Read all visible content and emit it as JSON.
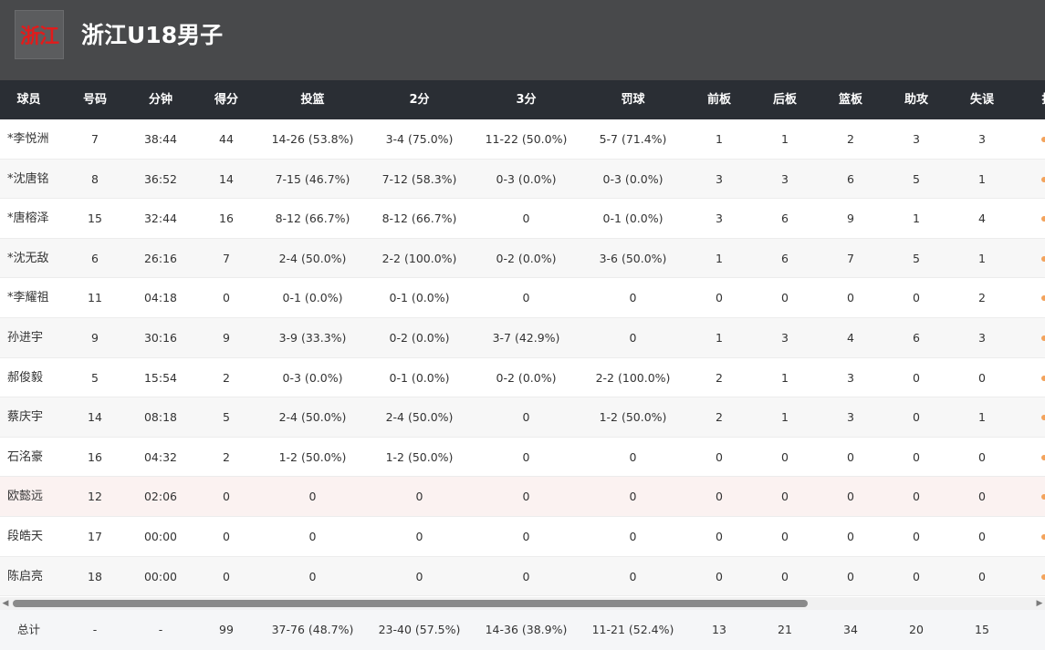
{
  "team": {
    "logo_text": "浙江",
    "name": "浙江U18男子"
  },
  "columns": [
    "球员",
    "号码",
    "分钟",
    "得分",
    "投篮",
    "2分",
    "3分",
    "罚球",
    "前板",
    "后板",
    "篮板",
    "助攻",
    "失误",
    "抢"
  ],
  "players": [
    {
      "name": "*李悦洲",
      "no": "7",
      "min": "38:44",
      "pts": "44",
      "fg": "14-26 (53.8%)",
      "two": "3-4 (75.0%)",
      "three": "11-22 (50.0%)",
      "ft": "5-7 (71.4%)",
      "oreb": "1",
      "dreb": "1",
      "reb": "2",
      "ast": "3",
      "tov": "3"
    },
    {
      "name": "*沈唐铭",
      "no": "8",
      "min": "36:52",
      "pts": "14",
      "fg": "7-15 (46.7%)",
      "two": "7-12 (58.3%)",
      "three": "0-3 (0.0%)",
      "ft": "0-3 (0.0%)",
      "oreb": "3",
      "dreb": "3",
      "reb": "6",
      "ast": "5",
      "tov": "1"
    },
    {
      "name": "*唐榕泽",
      "no": "15",
      "min": "32:44",
      "pts": "16",
      "fg": "8-12 (66.7%)",
      "two": "8-12 (66.7%)",
      "three": "0",
      "ft": "0-1 (0.0%)",
      "oreb": "3",
      "dreb": "6",
      "reb": "9",
      "ast": "1",
      "tov": "4"
    },
    {
      "name": "*沈无敌",
      "no": "6",
      "min": "26:16",
      "pts": "7",
      "fg": "2-4 (50.0%)",
      "two": "2-2 (100.0%)",
      "three": "0-2 (0.0%)",
      "ft": "3-6 (50.0%)",
      "oreb": "1",
      "dreb": "6",
      "reb": "7",
      "ast": "5",
      "tov": "1"
    },
    {
      "name": "*李耀祖",
      "no": "11",
      "min": "04:18",
      "pts": "0",
      "fg": "0-1 (0.0%)",
      "two": "0-1 (0.0%)",
      "three": "0",
      "ft": "0",
      "oreb": "0",
      "dreb": "0",
      "reb": "0",
      "ast": "0",
      "tov": "2"
    },
    {
      "name": "孙进宇",
      "no": "9",
      "min": "30:16",
      "pts": "9",
      "fg": "3-9 (33.3%)",
      "two": "0-2 (0.0%)",
      "three": "3-7 (42.9%)",
      "ft": "0",
      "oreb": "1",
      "dreb": "3",
      "reb": "4",
      "ast": "6",
      "tov": "3"
    },
    {
      "name": "郝俊毅",
      "no": "5",
      "min": "15:54",
      "pts": "2",
      "fg": "0-3 (0.0%)",
      "two": "0-1 (0.0%)",
      "three": "0-2 (0.0%)",
      "ft": "2-2 (100.0%)",
      "oreb": "2",
      "dreb": "1",
      "reb": "3",
      "ast": "0",
      "tov": "0"
    },
    {
      "name": "蔡庆宇",
      "no": "14",
      "min": "08:18",
      "pts": "5",
      "fg": "2-4 (50.0%)",
      "two": "2-4 (50.0%)",
      "three": "0",
      "ft": "1-2 (50.0%)",
      "oreb": "2",
      "dreb": "1",
      "reb": "3",
      "ast": "0",
      "tov": "1"
    },
    {
      "name": "石洺豪",
      "no": "16",
      "min": "04:32",
      "pts": "2",
      "fg": "1-2 (50.0%)",
      "two": "1-2 (50.0%)",
      "three": "0",
      "ft": "0",
      "oreb": "0",
      "dreb": "0",
      "reb": "0",
      "ast": "0",
      "tov": "0"
    },
    {
      "name": "欧懿远",
      "no": "12",
      "min": "02:06",
      "pts": "0",
      "fg": "0",
      "two": "0",
      "three": "0",
      "ft": "0",
      "oreb": "0",
      "dreb": "0",
      "reb": "0",
      "ast": "0",
      "tov": "0"
    },
    {
      "name": "段皓天",
      "no": "17",
      "min": "00:00",
      "pts": "0",
      "fg": "0",
      "two": "0",
      "three": "0",
      "ft": "0",
      "oreb": "0",
      "dreb": "0",
      "reb": "0",
      "ast": "0",
      "tov": "0"
    },
    {
      "name": "陈启亮",
      "no": "18",
      "min": "00:00",
      "pts": "0",
      "fg": "0",
      "two": "0",
      "three": "0",
      "ft": "0",
      "oreb": "0",
      "dreb": "0",
      "reb": "0",
      "ast": "0",
      "tov": "0"
    }
  ],
  "totals": {
    "name": "总计",
    "no": "-",
    "min": "-",
    "pts": "99",
    "fg": "37-76 (48.7%)",
    "two": "23-40 (57.5%)",
    "three": "14-36 (38.9%)",
    "ft": "11-21 (52.4%)",
    "oreb": "13",
    "dreb": "21",
    "reb": "34",
    "ast": "20",
    "tov": "15"
  },
  "scrollbar": {
    "left_arrow": "◀",
    "right_arrow": "▶"
  },
  "colors": {
    "header_bg": "#48494b",
    "table_head_bg": "#2a2e34",
    "logo_red": "#e21b1b",
    "dot_orange": "#f3a35c"
  }
}
